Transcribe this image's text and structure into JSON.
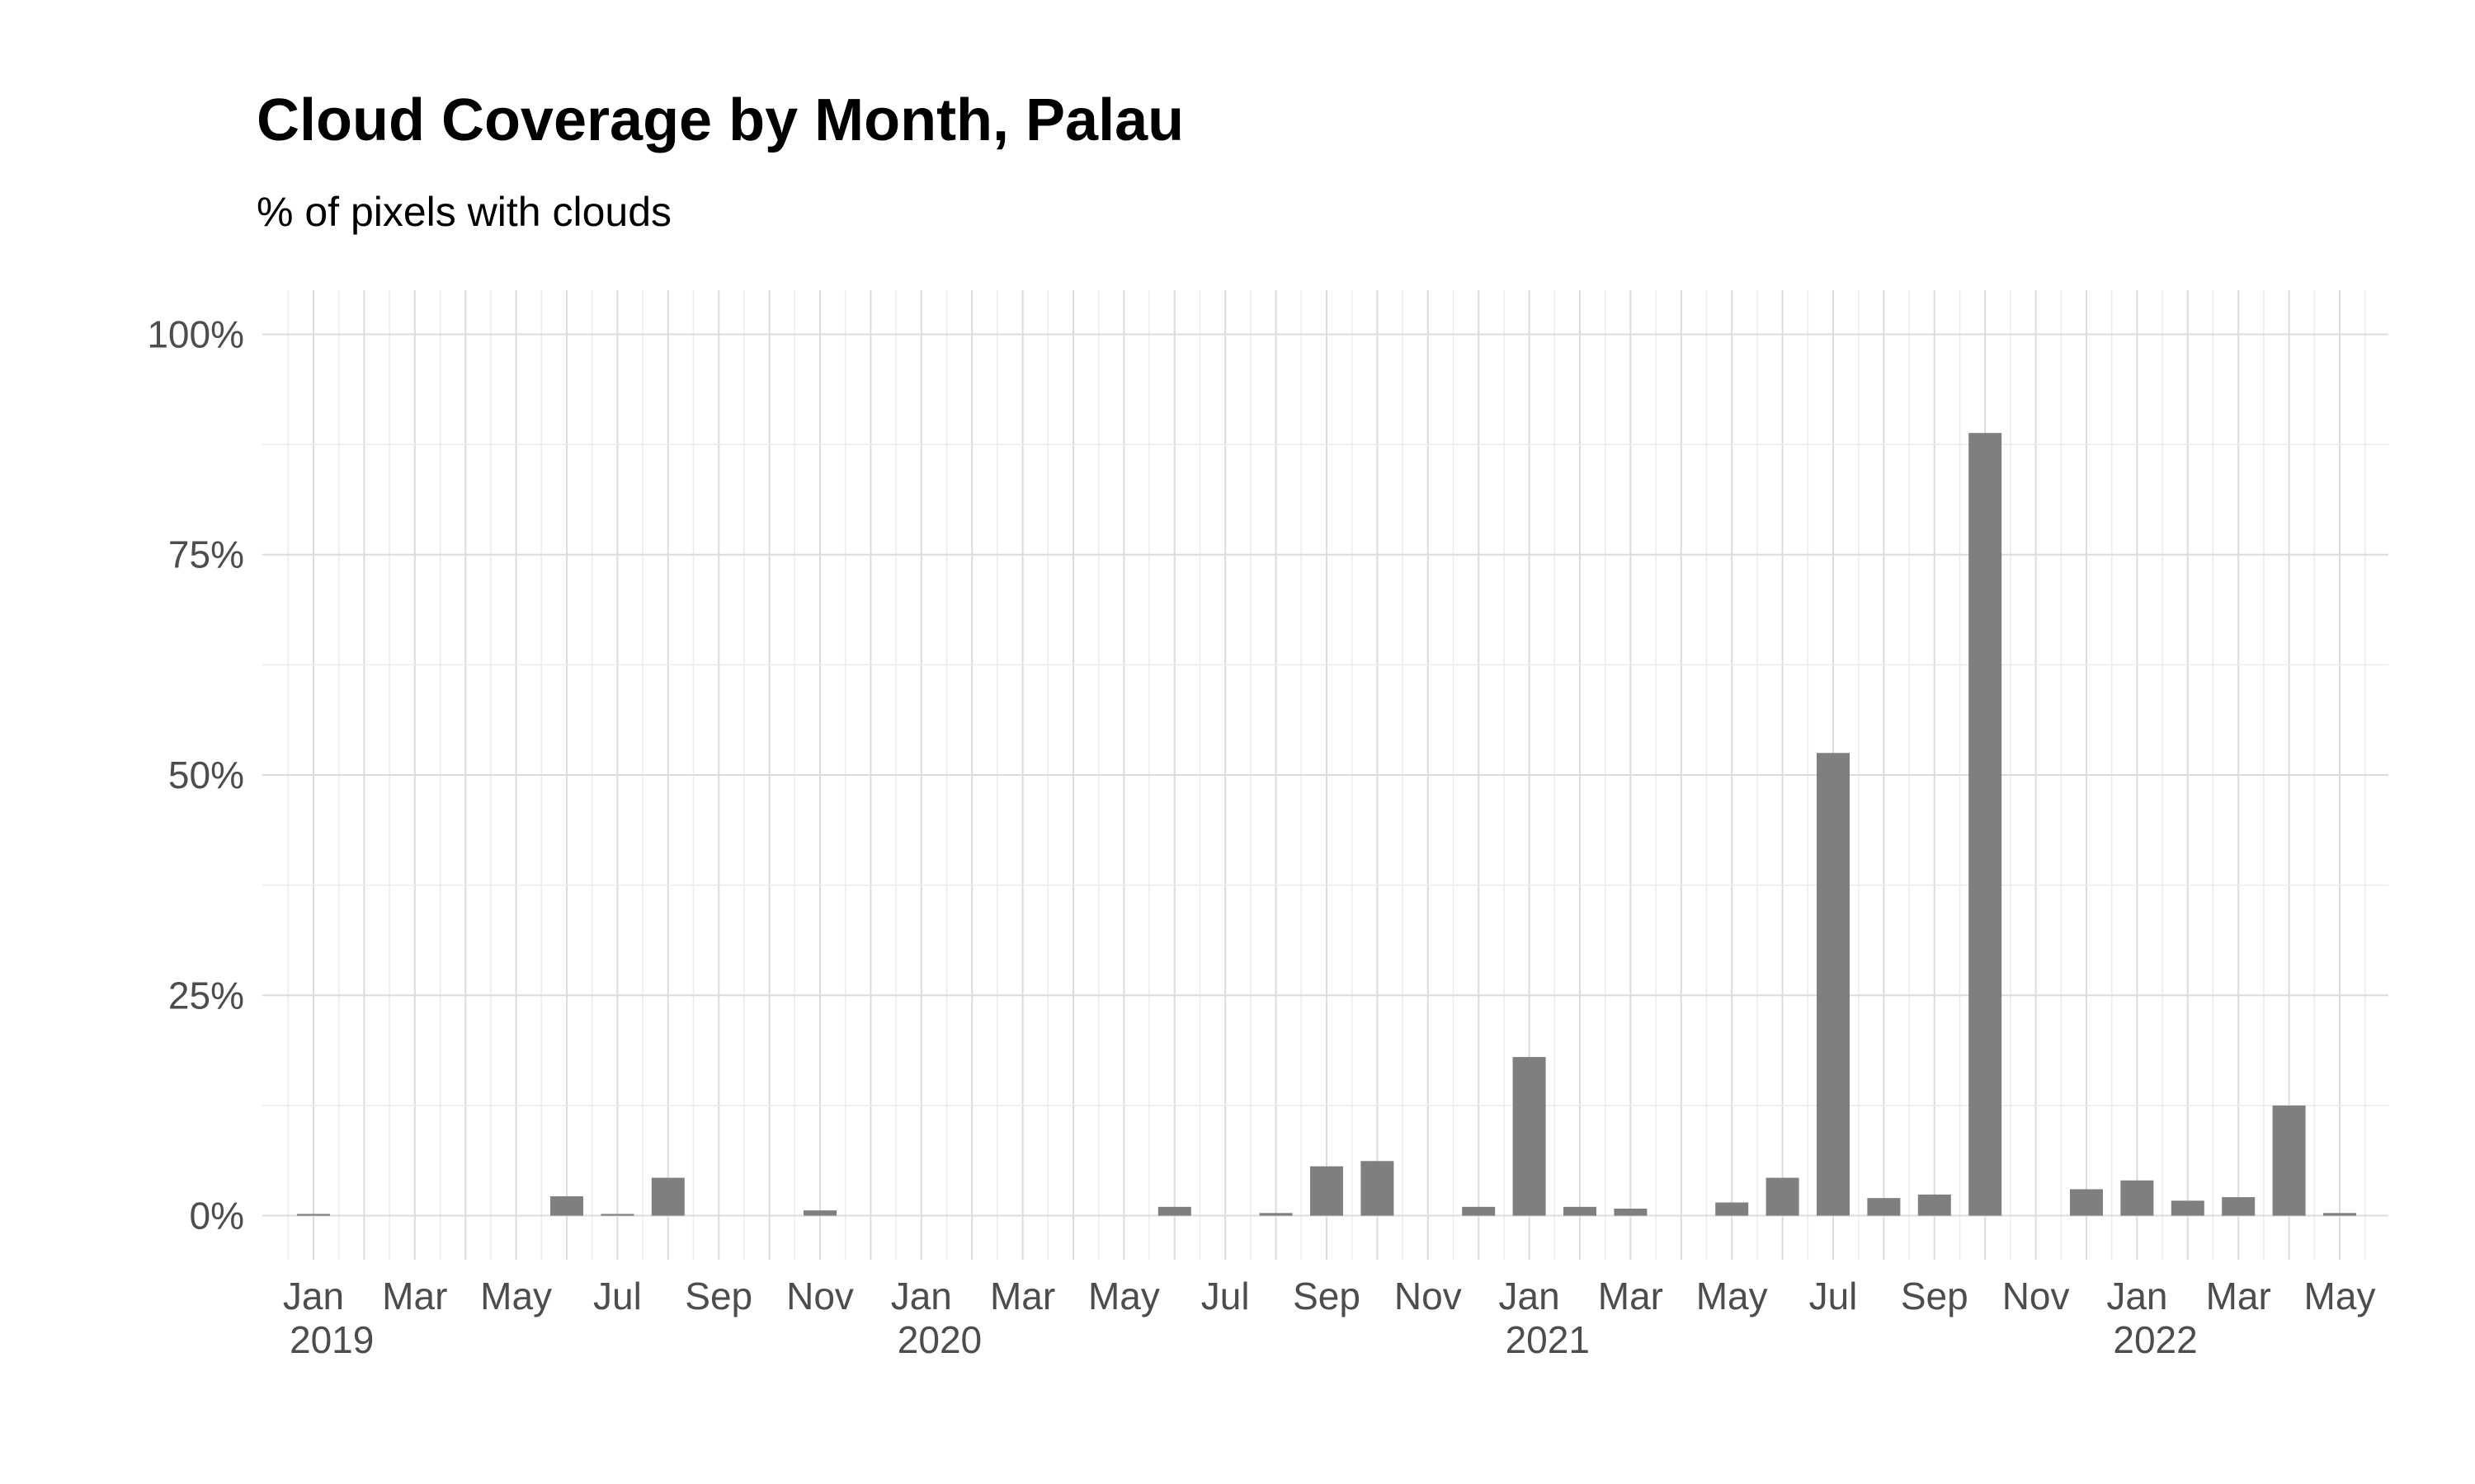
{
  "chart_data": {
    "type": "bar",
    "title": "Cloud Coverage by Month, Palau",
    "subtitle": "% of pixels with clouds",
    "xlabel": "",
    "ylabel": "",
    "x": [
      "2019-01",
      "2019-02",
      "2019-03",
      "2019-04",
      "2019-05",
      "2019-06",
      "2019-07",
      "2019-08",
      "2019-09",
      "2019-10",
      "2019-11",
      "2019-12",
      "2020-01",
      "2020-02",
      "2020-03",
      "2020-04",
      "2020-05",
      "2020-06",
      "2020-07",
      "2020-08",
      "2020-09",
      "2020-10",
      "2020-11",
      "2020-12",
      "2021-01",
      "2021-02",
      "2021-03",
      "2021-04",
      "2021-05",
      "2021-06",
      "2021-07",
      "2021-08",
      "2021-09",
      "2021-10",
      "2021-11",
      "2021-12",
      "2022-01",
      "2022-02",
      "2022-03",
      "2022-04",
      "2022-05"
    ],
    "values": [
      0.2,
      0,
      0,
      0,
      0,
      2.2,
      0.2,
      4.3,
      0,
      0,
      0.6,
      0,
      0,
      0,
      0,
      0,
      0,
      1.0,
      0,
      0.3,
      5.6,
      6.2,
      0,
      1.0,
      18.0,
      1.0,
      0.8,
      0,
      1.5,
      4.3,
      52.5,
      2.0,
      2.4,
      88.8,
      0,
      3.0,
      4.0,
      1.7,
      2.1,
      12.5,
      0.3
    ],
    "ylim": [
      -5,
      105
    ],
    "yticks": [
      0,
      25,
      50,
      75,
      100
    ],
    "ytick_labels": [
      "0%",
      "25%",
      "50%",
      "75%",
      "100%"
    ],
    "xtick_labels": [
      {
        "month": "2019-01",
        "label": "Jan",
        "year": "2019"
      },
      {
        "month": "2019-03",
        "label": "Mar",
        "year": ""
      },
      {
        "month": "2019-05",
        "label": "May",
        "year": ""
      },
      {
        "month": "2019-07",
        "label": "Jul",
        "year": ""
      },
      {
        "month": "2019-09",
        "label": "Sep",
        "year": ""
      },
      {
        "month": "2019-11",
        "label": "Nov",
        "year": ""
      },
      {
        "month": "2020-01",
        "label": "Jan",
        "year": "2020"
      },
      {
        "month": "2020-03",
        "label": "Mar",
        "year": ""
      },
      {
        "month": "2020-05",
        "label": "May",
        "year": ""
      },
      {
        "month": "2020-07",
        "label": "Jul",
        "year": ""
      },
      {
        "month": "2020-09",
        "label": "Sep",
        "year": ""
      },
      {
        "month": "2020-11",
        "label": "Nov",
        "year": ""
      },
      {
        "month": "2021-01",
        "label": "Jan",
        "year": "2021"
      },
      {
        "month": "2021-03",
        "label": "Mar",
        "year": ""
      },
      {
        "month": "2021-05",
        "label": "May",
        "year": ""
      },
      {
        "month": "2021-07",
        "label": "Jul",
        "year": ""
      },
      {
        "month": "2021-09",
        "label": "Sep",
        "year": ""
      },
      {
        "month": "2021-11",
        "label": "Nov",
        "year": ""
      },
      {
        "month": "2022-01",
        "label": "Jan",
        "year": "2022"
      },
      {
        "month": "2022-03",
        "label": "Mar",
        "year": ""
      },
      {
        "month": "2022-05",
        "label": "May",
        "year": ""
      }
    ],
    "grid": true,
    "legend": "none",
    "colors": {
      "bar": "#7f7f7f",
      "grid_major": "#dcdcdc",
      "grid_minor": "#ececec",
      "tick_label": "#4d4d4d"
    }
  }
}
